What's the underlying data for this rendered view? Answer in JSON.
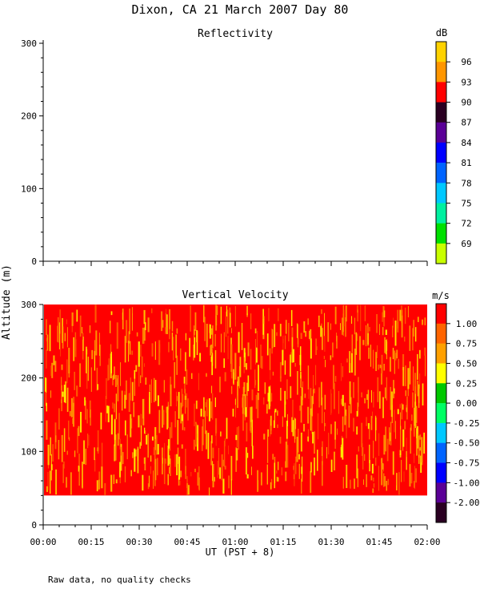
{
  "page_title": "Dixon, CA 21 March 2007  Day  80",
  "footer_note": "Raw data, no quality checks",
  "chart_data": [
    {
      "type": "heatmap",
      "title": "Reflectivity",
      "ylabel": "Altitude (m)",
      "ylim": [
        0,
        300
      ],
      "yticks": [
        "0",
        "100",
        "200",
        "300"
      ],
      "values": [],
      "colorbar": {
        "unit": "dB",
        "labels": [
          "96",
          "93",
          "90",
          "87",
          "84",
          "81",
          "78",
          "75",
          "72",
          "69"
        ],
        "colors": [
          "#ffd200",
          "#ff9600",
          "#ff0000",
          "#2a0022",
          "#5a0096",
          "#0000ff",
          "#0064ff",
          "#00c8ff",
          "#00f0a0",
          "#00e000",
          "#c8ff00"
        ]
      }
    },
    {
      "type": "heatmap",
      "title": "Vertical Velocity",
      "ylabel": "Altitude (m)",
      "xlabel": "UT  (PST + 8)",
      "ylim": [
        0,
        300
      ],
      "yticks": [
        "0",
        "100",
        "200",
        "300"
      ],
      "data_altitude_range": [
        40,
        300
      ],
      "xticks": [
        "00:00",
        "00:15",
        "00:30",
        "00:45",
        "01:00",
        "01:15",
        "01:30",
        "01:45",
        "02:00"
      ],
      "colorbar": {
        "unit": "m/s",
        "labels": [
          "1.00",
          "0.75",
          "0.50",
          "0.25",
          "0.00",
          "-0.25",
          "-0.50",
          "-0.75",
          "-1.00",
          "-2.00"
        ],
        "colors": [
          "#ff0000",
          "#ff6400",
          "#ffa000",
          "#ffff00",
          "#00c800",
          "#00ff64",
          "#00c8ff",
          "#0064ff",
          "#0000ff",
          "#5a0096",
          "#2a0022"
        ]
      },
      "values": "dominant red (~1.0 m/s) with yellow/orange streaks (0.5-0.75 m/s) throughout 40-300 m"
    }
  ]
}
